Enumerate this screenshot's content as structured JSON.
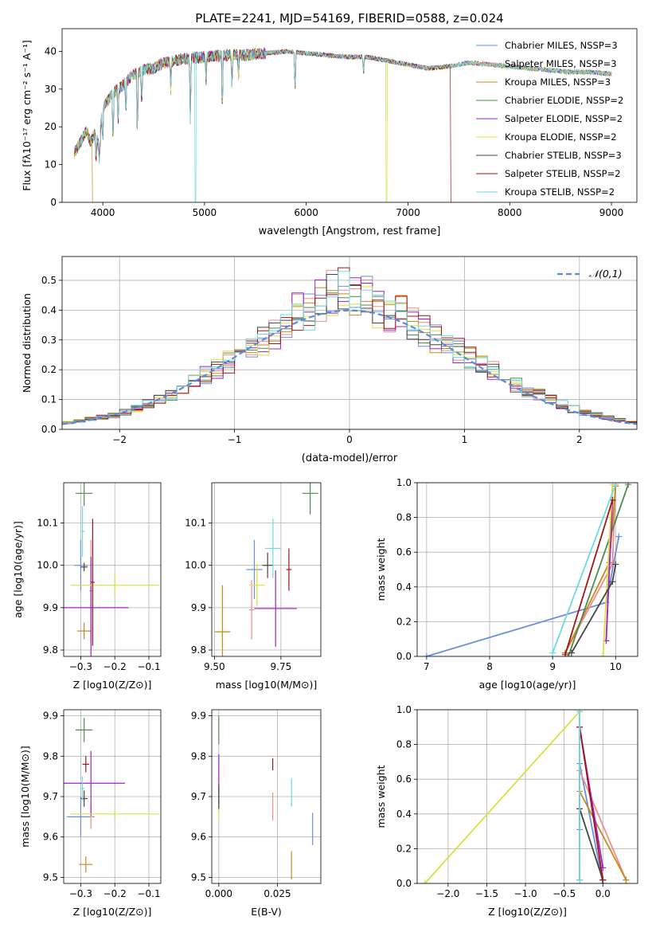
{
  "figure_title": "PLATE=2241, MJD=54169, FIBERID=0588, z=0.024",
  "series_colors": [
    "#6a8fe0",
    "#f08c8c",
    "#c88a1a",
    "#4f8a4f",
    "#a020c8",
    "#d8e040",
    "#444444",
    "#a01515",
    "#70d8e0"
  ],
  "chart_data": [
    {
      "id": "spectrum",
      "type": "line",
      "title": "PLATE=2241, MJD=54169, FIBERID=0588, z=0.024",
      "xlabel": "wavelength [Angstrom, rest frame]",
      "ylabel": "Flux [fλ10⁻¹⁷ erg cm⁻² s⁻¹ A⁻¹]",
      "xlim": [
        3600,
        9250
      ],
      "ylim": [
        0,
        46
      ],
      "xticks": [
        4000,
        5000,
        6000,
        7000,
        8000,
        9000
      ],
      "yticks": [
        0,
        10,
        20,
        30,
        40
      ],
      "grid": false,
      "legend_position": "top-right",
      "series": [
        {
          "name": "Chabrier MILES, NSSP=3"
        },
        {
          "name": "Salpeter MILES, NSSP=3"
        },
        {
          "name": "Kroupa MILES, NSSP=3"
        },
        {
          "name": "Chabrier ELODIE, NSSP=2"
        },
        {
          "name": "Salpeter ELODIE, NSSP=2"
        },
        {
          "name": "Kroupa ELODIE, NSSP=2"
        },
        {
          "name": "Chabrier STELIB, NSSP=3"
        },
        {
          "name": "Salpeter STELIB, NSSP=2"
        },
        {
          "name": "Kroupa STELIB, NSSP=2"
        }
      ],
      "continuum": {
        "x": [
          3720,
          3760,
          3800,
          3840,
          3880,
          3920,
          3960,
          4000,
          4100,
          4200,
          4300,
          4400,
          4500,
          4600,
          4800,
          5000,
          5200,
          5400,
          5600,
          5800,
          6000,
          6200,
          6400,
          6600,
          6800,
          7000,
          7200,
          7400,
          7600,
          7800,
          8000,
          8200,
          8400,
          8600,
          8800,
          9000
        ],
        "y": [
          13,
          15,
          17,
          19,
          16,
          18,
          15,
          25,
          29,
          31,
          34,
          35,
          35.5,
          37,
          38,
          38.5,
          39,
          39,
          39.5,
          40,
          39.5,
          39,
          38.5,
          38.5,
          37.5,
          36.5,
          35.5,
          36,
          37,
          36.5,
          36,
          35.5,
          35,
          34.5,
          34.5,
          34
        ]
      },
      "dropouts": [
        {
          "series": "Kroupa MILES, NSSP=3",
          "from_x": 3900
        },
        {
          "series": "Kroupa STELIB, NSSP=2",
          "at_x": 4910
        },
        {
          "series": "Kroupa ELODIE, NSSP=2",
          "at_x": 6790
        },
        {
          "series": "Salpeter STELIB, NSSP=2",
          "from_x": 7420
        }
      ]
    },
    {
      "id": "residuals",
      "type": "line",
      "xlabel": "(data-model)/error",
      "ylabel": "Normed distribution",
      "xlim": [
        -2.5,
        2.5
      ],
      "ylim": [
        0,
        0.58
      ],
      "xticks": [
        -2,
        -1,
        0,
        1,
        2
      ],
      "yticks": [
        0.0,
        0.1,
        0.2,
        0.3,
        0.4,
        0.5
      ],
      "grid": true,
      "legend_position": "top-right",
      "legend": [
        "𝒩(0,1)"
      ],
      "histogram_bin_width": 0.1,
      "histogram_mean_envelope": {
        "x": [
          -2.5,
          -2.0,
          -1.5,
          -1.0,
          -0.5,
          0.0,
          0.5,
          1.0,
          1.5,
          2.0,
          2.5
        ],
        "y": [
          0.02,
          0.05,
          0.12,
          0.24,
          0.36,
          0.44,
          0.36,
          0.25,
          0.14,
          0.06,
          0.02
        ]
      }
    },
    {
      "id": "age-vs-Z",
      "type": "scatter",
      "xlabel": "Z [log10(Z/Z⊙)]",
      "ylabel": "age  [log10(age/yr)]",
      "xlim": [
        -0.35,
        -0.065
      ],
      "ylim": [
        9.785,
        10.195
      ],
      "xticks": [
        -0.3,
        -0.2,
        -0.1
      ],
      "yticks": [
        9.8,
        9.9,
        10.0,
        10.1
      ],
      "grid": true,
      "points": [
        {
          "x": -0.3,
          "y": 10.0,
          "xerr": 0.02,
          "yerr": 0.06
        },
        {
          "x": -0.27,
          "y": 9.94,
          "xerr": 0.005,
          "yerr": 0.12
        },
        {
          "x": -0.29,
          "y": 9.845,
          "xerr": 0.02,
          "yerr": 0.02
        },
        {
          "x": -0.29,
          "y": 10.17,
          "xerr": 0.025,
          "yerr": 0.03
        },
        {
          "x": -0.27,
          "y": 9.9,
          "xerr": 0.11,
          "yerr": 0.12
        },
        {
          "x": -0.2,
          "y": 9.953,
          "xerr": 0.13,
          "yerr": 0.025
        },
        {
          "x": -0.29,
          "y": 9.996,
          "xerr": 0.01,
          "yerr": 0.01
        },
        {
          "x": -0.265,
          "y": 9.96,
          "xerr": 0.006,
          "yerr": 0.15
        },
        {
          "x": -0.295,
          "y": 10.08,
          "xerr": 0.006,
          "yerr": 0.06
        }
      ]
    },
    {
      "id": "age-vs-mass",
      "type": "scatter",
      "xlabel": "mass [log10(M/M⊙)]",
      "ylabel": "",
      "xlim": [
        9.49,
        9.9
      ],
      "ylim": [
        9.785,
        10.195
      ],
      "xticks": [
        9.5,
        9.75
      ],
      "yticks": [
        9.8,
        9.9,
        10.0,
        10.1
      ],
      "grid": true,
      "points": [
        {
          "x": 9.65,
          "y": 9.99,
          "xerr": 0.03,
          "yerr": 0.07
        },
        {
          "x": 9.64,
          "y": 9.895,
          "xerr": 0.01,
          "yerr": 0.07
        },
        {
          "x": 9.53,
          "y": 9.843,
          "xerr": 0.03,
          "yerr": 0.11
        },
        {
          "x": 9.86,
          "y": 10.17,
          "xerr": 0.03,
          "yerr": 0.05
        },
        {
          "x": 9.73,
          "y": 9.898,
          "xerr": 0.08,
          "yerr": 0.09
        },
        {
          "x": 9.66,
          "y": 9.953,
          "xerr": 0.03,
          "yerr": 0.05
        },
        {
          "x": 9.7,
          "y": 10.0,
          "xerr": 0.02,
          "yerr": 0.03
        },
        {
          "x": 9.78,
          "y": 9.99,
          "xerr": 0.01,
          "yerr": 0.05
        },
        {
          "x": 9.72,
          "y": 10.04,
          "xerr": 0.03,
          "yerr": 0.07
        }
      ]
    },
    {
      "id": "weight-vs-age",
      "type": "line",
      "xlabel": "age  [log10(age/yr)]",
      "ylabel": "mass weight",
      "xlim": [
        6.85,
        10.35
      ],
      "ylim": [
        0,
        1.0
      ],
      "xticks": [
        7,
        8,
        9,
        10
      ],
      "yticks": [
        0.0,
        0.2,
        0.4,
        0.6,
        0.8,
        1.0
      ],
      "grid": true,
      "series": [
        {
          "x": [
            7.0,
            9.85,
            10.05
          ],
          "y": [
            0.0,
            0.31,
            0.69
          ]
        },
        {
          "x": [
            9.2,
            9.95,
            10.0
          ],
          "y": [
            0.02,
            0.53,
            0.99
          ]
        },
        {
          "x": [
            9.2,
            9.9,
            10.0
          ],
          "y": [
            0.02,
            0.54,
            0.98
          ]
        },
        {
          "x": [
            9.25,
            10.2
          ],
          "y": [
            0.0,
            0.99
          ]
        },
        {
          "x": [
            9.85,
            9.95
          ],
          "y": [
            0.09,
            0.9
          ]
        },
        {
          "x": [
            9.8,
            9.95
          ],
          "y": [
            0.0,
            0.99
          ]
        },
        {
          "x": [
            9.3,
            9.95,
            10.0
          ],
          "y": [
            0.02,
            0.43,
            0.53
          ]
        },
        {
          "x": [
            9.2,
            9.95
          ],
          "y": [
            0.01,
            0.9
          ]
        },
        {
          "x": [
            9.0,
            10.0
          ],
          "y": [
            0.02,
            0.99
          ]
        }
      ]
    },
    {
      "id": "mass-vs-Z",
      "type": "scatter",
      "xlabel": "Z [log10(Z/Z⊙)]",
      "ylabel": "mass [log10(M/M⊙)]",
      "xlim": [
        -0.35,
        -0.065
      ],
      "ylim": [
        9.485,
        9.915
      ],
      "xticks": [
        -0.3,
        -0.2,
        -0.1
      ],
      "yticks": [
        9.5,
        9.6,
        9.7,
        9.8,
        9.9
      ],
      "grid": true,
      "points": [
        {
          "x": -0.3,
          "y": 9.65,
          "xerr": 0.04,
          "yerr": 0.05
        },
        {
          "x": -0.27,
          "y": 9.65,
          "xerr": 0.005,
          "yerr": 0.03
        },
        {
          "x": -0.285,
          "y": 9.532,
          "xerr": 0.02,
          "yerr": 0.02
        },
        {
          "x": -0.29,
          "y": 9.865,
          "xerr": 0.025,
          "yerr": 0.03
        },
        {
          "x": -0.27,
          "y": 9.733,
          "xerr": 0.1,
          "yerr": 0.08
        },
        {
          "x": -0.2,
          "y": 9.657,
          "xerr": 0.13,
          "yerr": 0.01
        },
        {
          "x": -0.29,
          "y": 9.695,
          "xerr": 0.01,
          "yerr": 0.02
        },
        {
          "x": -0.285,
          "y": 9.78,
          "xerr": 0.01,
          "yerr": 0.02
        },
        {
          "x": -0.295,
          "y": 9.72,
          "xerr": 0.006,
          "yerr": 0.03
        }
      ]
    },
    {
      "id": "mass-vs-ebv",
      "type": "scatter",
      "xlabel": "E(B-V)",
      "ylabel": "",
      "xlim": [
        -0.003,
        0.0435
      ],
      "ylim": [
        9.485,
        9.915
      ],
      "xticks": [
        0.0,
        0.025
      ],
      "tick_labels": [
        "0.000",
        "0.025"
      ],
      "yticks": [
        9.5,
        9.6,
        9.7,
        9.8,
        9.9
      ],
      "grid": true,
      "points": [
        {
          "x": 0.04,
          "y": 9.62,
          "yerr": 0.04
        },
        {
          "x": 0.023,
          "y": 9.675,
          "yerr": 0.035
        },
        {
          "x": 0.031,
          "y": 9.53,
          "yerr": 0.035
        },
        {
          "x": 0.0,
          "y": 9.865,
          "yerr": 0.035
        },
        {
          "x": 0.0,
          "y": 9.735,
          "yerr": 0.07
        },
        {
          "x": 0.0,
          "y": 9.66,
          "yerr": 0.02
        },
        {
          "x": 0.0,
          "y": 9.7,
          "yerr": 0.03
        },
        {
          "x": 0.023,
          "y": 9.78,
          "yerr": 0.015
        },
        {
          "x": 0.031,
          "y": 9.71,
          "yerr": 0.035
        }
      ]
    },
    {
      "id": "weight-vs-Z",
      "type": "line",
      "xlabel": "Z [log10(Z/Z⊙)]",
      "ylabel": "mass weight",
      "xlim": [
        -2.4,
        0.45
      ],
      "ylim": [
        0,
        1.0
      ],
      "xticks": [
        -2.0,
        -1.5,
        -1.0,
        -0.5,
        0.0
      ],
      "yticks": [
        0.0,
        0.2,
        0.4,
        0.6,
        0.8,
        1.0
      ],
      "grid": true,
      "series": [
        {
          "x": [
            -0.3,
            -0.3,
            0.0
          ],
          "y": [
            0.31,
            0.69,
            0.0
          ]
        },
        {
          "x": [
            -0.3,
            0.3
          ],
          "y": [
            0.65,
            0.02
          ]
        },
        {
          "x": [
            -0.3,
            0.3
          ],
          "y": [
            0.53,
            0.02
          ]
        },
        {
          "x": [
            -0.3,
            -0.3
          ],
          "y": [
            0.02,
            0.99
          ]
        },
        {
          "x": [
            -0.3,
            0.0
          ],
          "y": [
            0.9,
            0.09
          ]
        },
        {
          "x": [
            -2.3,
            -0.3
          ],
          "y": [
            0.0,
            0.99
          ]
        },
        {
          "x": [
            -0.3,
            0.0
          ],
          "y": [
            0.43,
            0.02
          ]
        },
        {
          "x": [
            -0.3,
            0.0
          ],
          "y": [
            0.9,
            0.02
          ]
        },
        {
          "x": [
            -0.3,
            -0.3
          ],
          "y": [
            0.02,
            0.99
          ]
        }
      ]
    }
  ]
}
